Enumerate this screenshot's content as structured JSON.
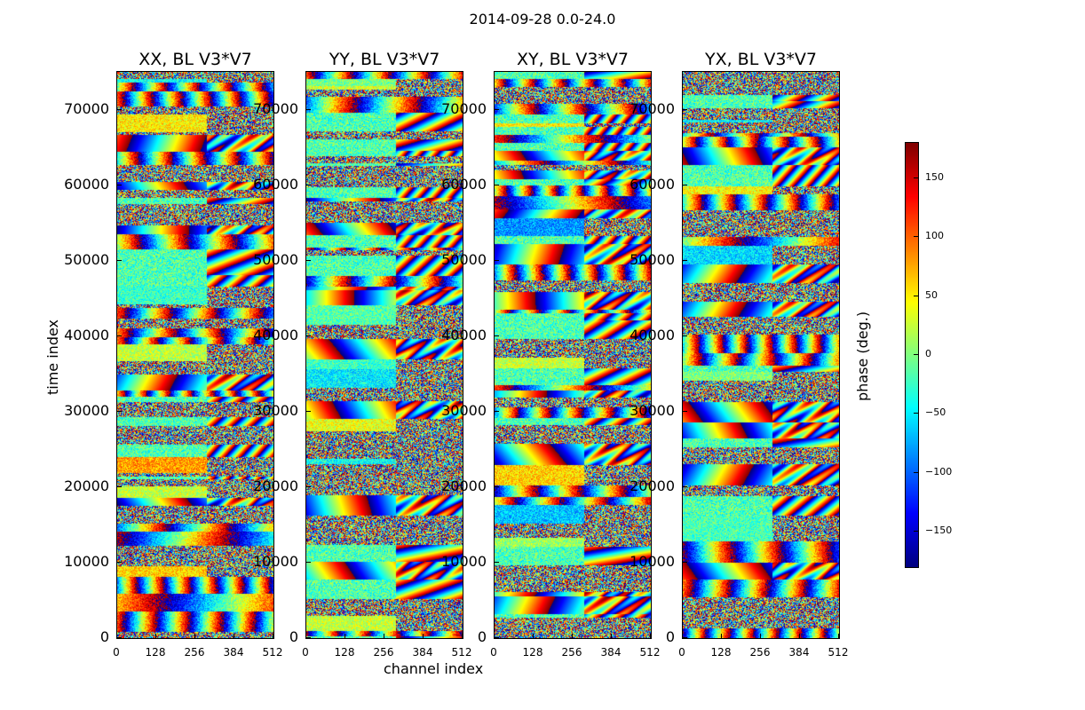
{
  "chart_data": {
    "type": "heatmap",
    "title": "2014-09-28 0.0-24.0",
    "xlabel": "channel index",
    "ylabel": "time index",
    "colorbar_label": "phase (deg.)",
    "colormap": "jet",
    "color_range": [
      -180,
      180
    ],
    "colorbar_ticks": [
      "150",
      "100",
      "50",
      "0",
      "−50",
      "−100",
      "−150"
    ],
    "colorbar_tick_values": [
      150,
      100,
      50,
      0,
      -50,
      -100,
      -150
    ],
    "xlim": [
      0,
      512
    ],
    "ylim": [
      0,
      75000
    ],
    "xticks": [
      "0",
      "128",
      "256",
      "384",
      "512"
    ],
    "xtick_values": [
      0,
      128,
      256,
      384,
      512
    ],
    "yticks": [
      "0",
      "10000",
      "20000",
      "30000",
      "40000",
      "50000",
      "60000",
      "70000"
    ],
    "ytick_values": [
      0,
      10000,
      20000,
      30000,
      40000,
      50000,
      60000,
      70000
    ],
    "panels": [
      {
        "title": "XX, BL V3*V7",
        "seed": 11
      },
      {
        "title": "YY, BL V3*V7",
        "seed": 23
      },
      {
        "title": "XY, BL V3*V7",
        "seed": 37
      },
      {
        "title": "YX, BL V3*V7",
        "seed": 53
      }
    ]
  }
}
